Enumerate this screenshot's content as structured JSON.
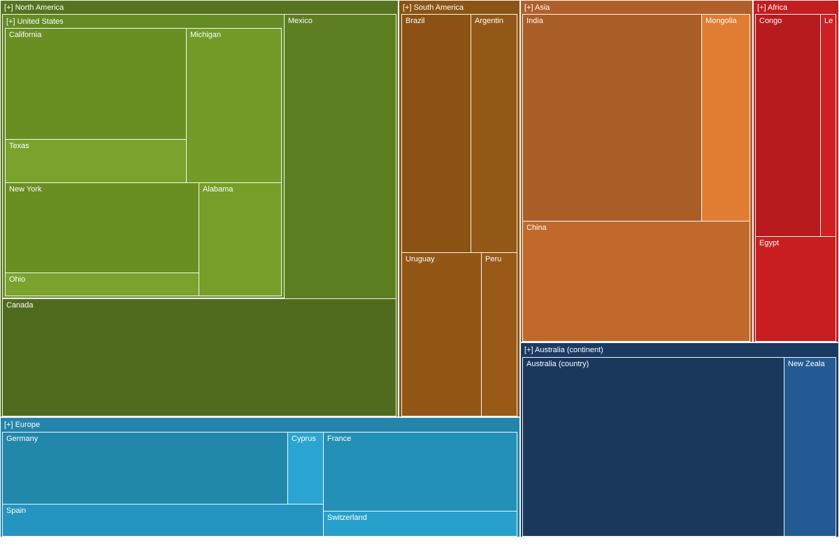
{
  "chart_data": {
    "type": "treemap",
    "groups": [
      {
        "key": "north_america",
        "label": "[+] North America",
        "color": "#567320",
        "children": [
          {
            "key": "united_states",
            "label": "[+] United States",
            "color": "#648b24",
            "children": [
              {
                "key": "california",
                "label": "California",
                "color": "#6b8e23"
              },
              {
                "key": "texas",
                "label": "Texas",
                "color": "#7aa22c"
              },
              {
                "key": "michigan",
                "label": "Michigan",
                "color": "#729b27"
              },
              {
                "key": "new_york",
                "label": "New York",
                "color": "#6b8e23"
              },
              {
                "key": "ohio",
                "label": "Ohio",
                "color": "#7aa22c"
              },
              {
                "key": "alabama",
                "label": "Alabama",
                "color": "#769e29"
              }
            ]
          },
          {
            "key": "mexico",
            "label": "Mexico",
            "color": "#5e7e22"
          },
          {
            "key": "canada",
            "label": "Canada",
            "color": "#4f6b1e"
          }
        ]
      },
      {
        "key": "south_america",
        "label": "[+] South America",
        "color": "#8a5414",
        "children": [
          {
            "key": "brazil",
            "label": "Brazil",
            "color": "#8b5214"
          },
          {
            "key": "argentina",
            "label": "Argentin",
            "color": "#935815"
          },
          {
            "key": "uruguay",
            "label": "Uruguay",
            "color": "#935615"
          },
          {
            "key": "peru",
            "label": "Peru",
            "color": "#985a16"
          }
        ]
      },
      {
        "key": "asia",
        "label": "[+] Asia",
        "color": "#b05f2a",
        "children": [
          {
            "key": "india",
            "label": "India",
            "color": "#a95d27"
          },
          {
            "key": "mongolia",
            "label": "Mongolia",
            "color": "#e07d33"
          },
          {
            "key": "china",
            "label": "China",
            "color": "#c0692b"
          }
        ]
      },
      {
        "key": "africa",
        "label": "[+] Africa",
        "color": "#c41d1f",
        "children": [
          {
            "key": "congo",
            "label": "Congo",
            "color": "#b81b1e"
          },
          {
            "key": "lesotho",
            "label": "Le",
            "color": "#d01f21"
          },
          {
            "key": "egypt",
            "label": "Egypt",
            "color": "#c91e20"
          }
        ]
      },
      {
        "key": "europe",
        "label": "[+] Europe",
        "color": "#2584aa",
        "children": [
          {
            "key": "germany",
            "label": "Germany",
            "color": "#2187ab"
          },
          {
            "key": "cyprus",
            "label": "Cyprus",
            "color": "#2aa4d0"
          },
          {
            "key": "spain",
            "label": "Spain",
            "color": "#2395c0"
          },
          {
            "key": "france",
            "label": "France",
            "color": "#2390b6"
          },
          {
            "key": "switzerland",
            "label": "Switzerland",
            "color": "#27a0cb"
          }
        ]
      },
      {
        "key": "australia_continent",
        "label": "[+] Australia (continent)",
        "color": "#1a3a62",
        "children": [
          {
            "key": "australia_country",
            "label": "Australia (country)",
            "color": "#1a385e"
          },
          {
            "key": "new_zealand",
            "label": "New Zeala",
            "color": "#235a92"
          }
        ]
      }
    ]
  }
}
